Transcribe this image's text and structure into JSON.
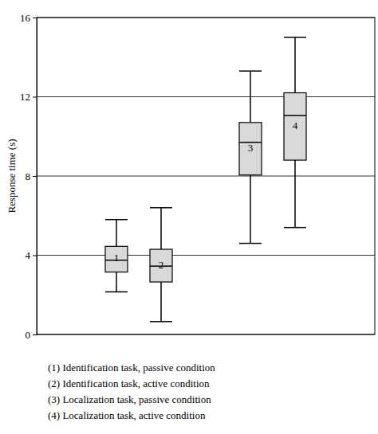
{
  "chart_data": {
    "type": "box",
    "y_label": "Response time (s)",
    "categories": [
      "1",
      "2",
      null,
      "3",
      "4"
    ],
    "min": [
      2.15,
      0.65,
      null,
      4.6,
      5.4
    ],
    "q1": [
      3.15,
      2.65,
      null,
      8.05,
      8.8
    ],
    "median": [
      3.75,
      3.45,
      null,
      9.7,
      11.05
    ],
    "q3": [
      4.45,
      4.3,
      null,
      10.7,
      12.2
    ],
    "max": [
      5.8,
      6.4,
      null,
      13.3,
      15.0
    ],
    "color": "#d9d9d9",
    "ylim": [
      0,
      16
    ],
    "yticks": [
      0,
      4,
      8,
      12,
      16
    ],
    "grid": true,
    "tick_labels": "y",
    "annotations": [
      "(1) Identification task, passive condition",
      "(2) Identification task, active condition",
      "(3) Localization task, passive condition",
      "(4) Localization task, active condition"
    ]
  }
}
